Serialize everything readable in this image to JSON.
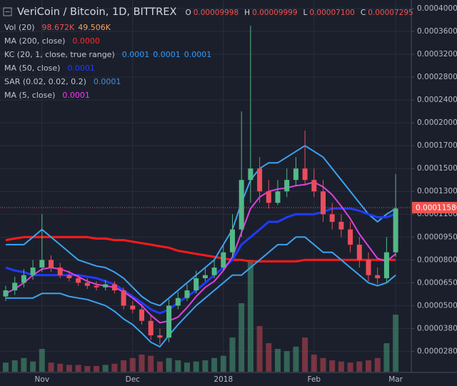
{
  "chart_data": {
    "type": "candlestick",
    "header": {
      "title": "VeriCoin / Bitcoin, 1D, BITTREX",
      "ohlc": [
        {
          "label": "O",
          "value": "0.00009998"
        },
        {
          "label": "H",
          "value": "0.00009999"
        },
        {
          "label": "L",
          "value": "0.00007100"
        },
        {
          "label": "C",
          "value": "0.00007295"
        }
      ]
    },
    "categories": [
      null,
      null,
      null,
      null,
      "Nov",
      null,
      null,
      null,
      null,
      null,
      null,
      null,
      null,
      null,
      "Dec",
      null,
      null,
      null,
      null,
      null,
      null,
      null,
      null,
      null,
      "2018",
      null,
      null,
      null,
      null,
      null,
      null,
      null,
      null,
      null,
      "Feb",
      null,
      null,
      null,
      null,
      null,
      null,
      null,
      null,
      "Mar"
    ],
    "open": [
      5.6e-05,
      6e-05,
      6.5e-05,
      7e-05,
      7.5e-05,
      8e-05,
      7.5e-05,
      7e-05,
      6.8e-05,
      6.5e-05,
      6.3e-05,
      6.2e-05,
      6.4e-05,
      6e-05,
      5e-05,
      4.8e-05,
      4.2e-05,
      3.5e-05,
      3.4e-05,
      5e-05,
      5.5e-05,
      6e-05,
      6.8e-05,
      7e-05,
      7.5e-05,
      8.5e-05,
      0.0001,
      0.00014,
      0.00015,
      0.00013,
      0.00012,
      0.00013,
      0.00014,
      0.00015,
      0.00014,
      0.00013,
      0.00011,
      0.000105,
      0.0001,
      9e-05,
      8e-05,
      7e-05,
      6.8e-05,
      8.5e-05
    ],
    "high": [
      6.3e-05,
      6.9e-05,
      7.4e-05,
      8e-05,
      0.00011,
      8.3e-05,
      7.8e-05,
      7.3e-05,
      7e-05,
      6.8e-05,
      6.6e-05,
      6.7e-05,
      6.6e-05,
      6.2e-05,
      5.3e-05,
      5.1e-05,
      4.5e-05,
      3.8e-05,
      5.4e-05,
      5.9e-05,
      6.4e-05,
      7.3e-05,
      7.5e-05,
      8e-05,
      9e-05,
      0.00011,
      0.00022,
      0.00037,
      0.00016,
      0.00014,
      0.00014,
      0.00015,
      0.00016,
      0.00019,
      0.00015,
      0.00014,
      0.00012,
      0.00011,
      0.000105,
      9.5e-05,
      8.5e-05,
      7.5e-05,
      9.5e-05,
      0.000145
    ],
    "low": [
      5.3e-05,
      5.7e-05,
      6.2e-05,
      6.7e-05,
      7.2e-05,
      7.2e-05,
      6.8e-05,
      6.6e-05,
      6.3e-05,
      6.1e-05,
      6e-05,
      6e-05,
      5.8e-05,
      4.8e-05,
      4.6e-05,
      4e-05,
      3.3e-05,
      3.1e-05,
      3.2e-05,
      4.8e-05,
      5.3e-05,
      5.8e-05,
      6.6e-05,
      6.8e-05,
      7.3e-05,
      8.2e-05,
      9.5e-05,
      0.00012,
      0.00012,
      0.000115,
      0.000118,
      0.000125,
      0.000135,
      0.000135,
      0.000125,
      0.000105,
      0.0001,
      9.5e-05,
      8.5e-05,
      7.5e-05,
      6.6e-05,
      6.4e-05,
      6.5e-05,
      8.2e-05
    ],
    "close": [
      6e-05,
      6.5e-05,
      7e-05,
      7.5e-05,
      8e-05,
      7.5e-05,
      7e-05,
      6.8e-05,
      6.5e-05,
      6.3e-05,
      6.2e-05,
      6.4e-05,
      6e-05,
      5e-05,
      4.8e-05,
      4.2e-05,
      3.5e-05,
      3.4e-05,
      5e-05,
      5.5e-05,
      6e-05,
      6.8e-05,
      7e-05,
      7.5e-05,
      8.5e-05,
      0.0001,
      0.00014,
      0.00015,
      0.00013,
      0.00012,
      0.00013,
      0.00014,
      0.00015,
      0.00014,
      0.00013,
      0.00011,
      0.000105,
      0.0001,
      9e-05,
      8e-05,
      7e-05,
      6.8e-05,
      8.5e-05,
      0.000115
    ],
    "up_color": "#53b987",
    "down_color": "#eb4d5c",
    "indicators": [
      {
        "name": "Vol (20)",
        "labels": [
          "98.672K",
          "49.506K"
        ],
        "label_colors": [
          "#ef5350",
          "#f7a35c"
        ],
        "values": [
          8,
          10,
          12,
          9,
          20,
          8,
          7,
          6,
          6,
          5,
          5,
          6,
          7,
          10,
          12,
          15,
          14,
          9,
          12,
          10,
          8,
          9,
          10,
          12,
          14,
          30,
          60,
          98,
          40,
          25,
          20,
          18,
          22,
          30,
          15,
          12,
          10,
          9,
          8,
          9,
          10,
          12,
          25,
          50
        ]
      },
      {
        "name": "MA (200, close)",
        "labels": [
          "0.0000"
        ],
        "label_colors": [
          "#ff2a2a"
        ],
        "color": "#ff1a1a",
        "values": [
          9.3e-05,
          9.4e-05,
          9.5e-05,
          9.5e-05,
          9.5e-05,
          9.5e-05,
          9.5e-05,
          9.5e-05,
          9.5e-05,
          9.5e-05,
          9.4e-05,
          9.4e-05,
          9.3e-05,
          9.3e-05,
          9.2e-05,
          9.1e-05,
          9e-05,
          8.9e-05,
          8.8e-05,
          8.6e-05,
          8.5e-05,
          8.4e-05,
          8.3e-05,
          8.2e-05,
          8.1e-05,
          8e-05,
          8e-05,
          7.9e-05,
          7.9e-05,
          7.9e-05,
          7.9e-05,
          7.9e-05,
          7.9e-05,
          8e-05,
          8e-05,
          8e-05,
          8e-05,
          8e-05,
          8e-05,
          8e-05,
          8e-05,
          8e-05,
          8e-05,
          8e-05
        ]
      },
      {
        "name": "KC (20, 1, close, true range)",
        "labels": [
          "0.0001",
          "0.0001",
          "0.0001"
        ],
        "label_colors": [
          "#2f9bff",
          "#2f9bff",
          "#2f9bff"
        ],
        "color": "#3ba3f0",
        "upper": [
          9e-05,
          9e-05,
          9e-05,
          9.5e-05,
          0.0001,
          9.5e-05,
          9e-05,
          8.5e-05,
          8e-05,
          7.8e-05,
          7.6e-05,
          7.5e-05,
          7.2e-05,
          6.8e-05,
          6.2e-05,
          5.6e-05,
          5.2e-05,
          5e-05,
          5.5e-05,
          6e-05,
          6.5e-05,
          7e-05,
          7.5e-05,
          8e-05,
          9e-05,
          0.0001,
          0.00012,
          0.00014,
          0.00015,
          0.000155,
          0.000155,
          0.00016,
          0.000165,
          0.00017,
          0.000165,
          0.00016,
          0.00015,
          0.00014,
          0.00013,
          0.00012,
          0.00011,
          0.000105,
          0.00011,
          0.000115
        ],
        "lower": [
          5.5e-05,
          5.5e-05,
          5.5e-05,
          5.5e-05,
          5.8e-05,
          5.8e-05,
          5.8e-05,
          5.6e-05,
          5.5e-05,
          5.4e-05,
          5.2e-05,
          5e-05,
          4.7e-05,
          4.3e-05,
          4e-05,
          3.6e-05,
          3.2e-05,
          3e-05,
          3.5e-05,
          4e-05,
          4.5e-05,
          5e-05,
          5.5e-05,
          6e-05,
          6.5e-05,
          7e-05,
          7e-05,
          7.5e-05,
          8e-05,
          8.5e-05,
          9e-05,
          9e-05,
          9.5e-05,
          9.5e-05,
          9e-05,
          8.5e-05,
          8.5e-05,
          8e-05,
          7.5e-05,
          7e-05,
          6.5e-05,
          6.3e-05,
          6.5e-05,
          7e-05
        ]
      },
      {
        "name": "MA (50, close)",
        "labels": [
          "0.0001"
        ],
        "label_colors": [
          "#1f3cff"
        ],
        "color": "#1f3cff",
        "values": [
          7.5e-05,
          7.3e-05,
          7.2e-05,
          7e-05,
          7e-05,
          7e-05,
          7e-05,
          7e-05,
          7e-05,
          6.9e-05,
          6.8e-05,
          6.6e-05,
          6.4e-05,
          6e-05,
          5.6e-05,
          5.2e-05,
          4.8e-05,
          4.6e-05,
          4.8e-05,
          5.2e-05,
          5.6e-05,
          6e-05,
          6.5e-05,
          7e-05,
          7.5e-05,
          8e-05,
          9e-05,
          9.5e-05,
          0.0001,
          0.000105,
          0.000105,
          0.000108,
          0.00011,
          0.00011,
          0.00011,
          0.000112,
          0.000115,
          0.000115,
          0.000115,
          0.000113,
          0.00011,
          0.000108,
          0.000108,
          0.00011
        ]
      },
      {
        "name": "SAR (0.02, 0.02, 0.2)",
        "labels": [
          "0.0001"
        ],
        "label_colors": [
          "#4a90d9"
        ]
      },
      {
        "name": "MA (5, close)",
        "labels": [
          "0.0001"
        ],
        "label_colors": [
          "#ff33ff"
        ],
        "color": "#e040e0",
        "values": [
          5.8e-05,
          6.1e-05,
          6.5e-05,
          7e-05,
          7.4e-05,
          7.5e-05,
          7.4e-05,
          7.2e-05,
          6.9e-05,
          6.6e-05,
          6.4e-05,
          6.3e-05,
          6.2e-05,
          5.9e-05,
          5.5e-05,
          5e-05,
          4.5e-05,
          4.1e-05,
          4.2e-05,
          4.4e-05,
          4.9e-05,
          5.6e-05,
          6.2e-05,
          6.6e-05,
          7.3e-05,
          8.2e-05,
          9.8e-05,
          0.000115,
          0.000125,
          0.00013,
          0.000132,
          0.000133,
          0.000135,
          0.000136,
          0.000138,
          0.000134,
          0.000127,
          0.000117,
          0.000107,
          9.7e-05,
          8.9e-05,
          8.1e-05,
          7.9e-05,
          8.4e-05
        ]
      }
    ],
    "vlim": [
      0,
      100
    ],
    "last_price": {
      "value": 0.0001158,
      "label": "0.00011580",
      "color": "#ef5350"
    },
    "ylim": [
      2.5e-05,
      0.000415
    ],
    "yticks": [
      {
        "value": 0.0004,
        "label": "0.00040000"
      },
      {
        "value": 0.00036,
        "label": "0.00036000"
      },
      {
        "value": 0.00032,
        "label": "0.00032000"
      },
      {
        "value": 0.00028,
        "label": "0.00028000"
      },
      {
        "value": 0.00024,
        "label": "0.00024000"
      },
      {
        "value": 0.0002,
        "label": "0.00020000"
      },
      {
        "value": 0.00017,
        "label": "0.00017000"
      },
      {
        "value": 0.00015,
        "label": "0.00015000"
      },
      {
        "value": 0.00013,
        "label": "0.00013000"
      },
      {
        "value": 0.00011,
        "label": "0.00011000"
      },
      {
        "value": 9.5e-05,
        "label": "0.00009500"
      },
      {
        "value": 8e-05,
        "label": "0.00008000"
      },
      {
        "value": 6.5e-05,
        "label": "0.00006500"
      },
      {
        "value": 5e-05,
        "label": "0.00005000"
      },
      {
        "value": 3.8e-05,
        "label": "0.00003800"
      },
      {
        "value": 2.8e-05,
        "label": "0.00002800"
      }
    ],
    "grid": true
  }
}
